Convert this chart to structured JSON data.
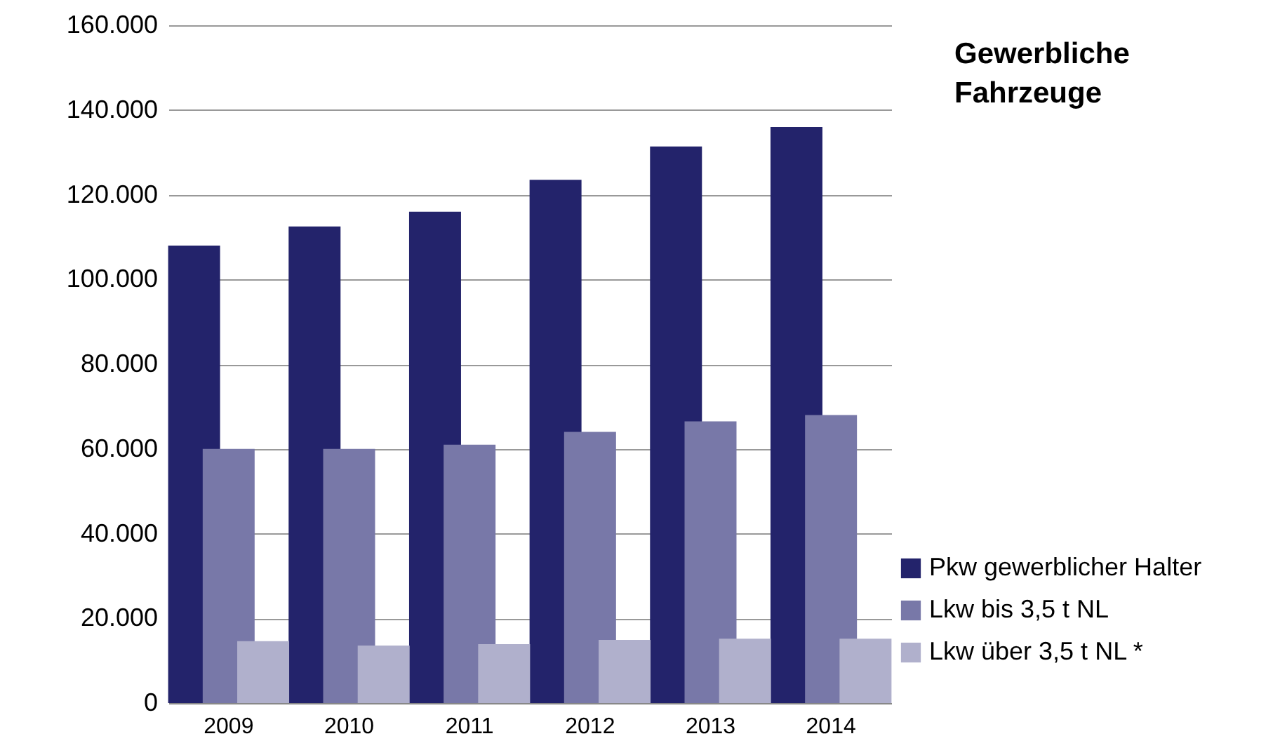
{
  "chart_data": {
    "type": "bar",
    "title": "Gewerbliche Fahrzeuge",
    "categories": [
      "2009",
      "2010",
      "2011",
      "2012",
      "2013",
      "2014"
    ],
    "series": [
      {
        "name": "Pkw gewerblicher Halter",
        "color": "#23236b",
        "values": [
          108000,
          112500,
          116000,
          123500,
          131400,
          136000
        ]
      },
      {
        "name": "Lkw bis 3,5 t NL",
        "color": "#7878a8",
        "values": [
          60000,
          60000,
          61000,
          64000,
          66500,
          68000
        ]
      },
      {
        "name": "Lkw über 3,5 t NL *",
        "color": "#b0b0cc",
        "values": [
          14600,
          13600,
          13900,
          14900,
          15200,
          15200
        ]
      }
    ],
    "ylim": [
      0,
      160000
    ],
    "yticks": [
      {
        "value": 0,
        "label": "0"
      },
      {
        "value": 20000,
        "label": "20.000"
      },
      {
        "value": 40000,
        "label": "40.000"
      },
      {
        "value": 60000,
        "label": "60.000"
      },
      {
        "value": 80000,
        "label": "80.000"
      },
      {
        "value": 100000,
        "label": "100.000"
      },
      {
        "value": 120000,
        "label": "120.000"
      },
      {
        "value": 140000,
        "label": "140.000"
      },
      {
        "value": 160000,
        "label": "160.000"
      }
    ],
    "grid": "y",
    "legend": "bottom right"
  }
}
